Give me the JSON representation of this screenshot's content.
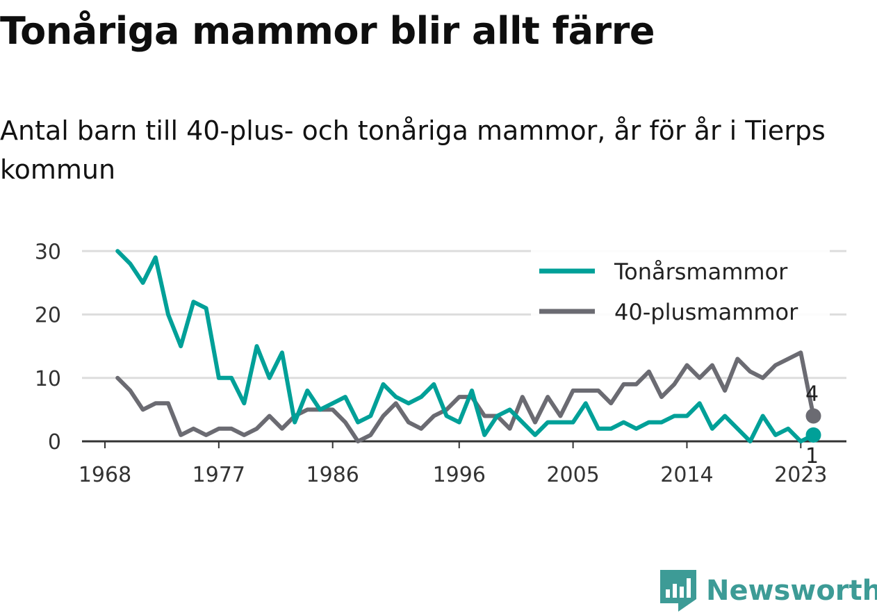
{
  "title": "Tonåriga mammor blir allt färre",
  "subtitle": "Antal barn till 40-plus- och tonåriga mammor, år för år i Tierps kommun",
  "brand": {
    "name": "Newsworthy",
    "icon": "newsworthy-logo-icon",
    "color": "#3d9b96"
  },
  "chart_data": {
    "type": "line",
    "title": "Tonåriga mammor blir allt färre",
    "subtitle": "Antal barn till 40-plus- och tonåriga mammor, år för år i Tierps kommun",
    "xlabel": "",
    "ylabel": "",
    "x": [
      1969,
      1970,
      1971,
      1972,
      1973,
      1974,
      1975,
      1976,
      1977,
      1978,
      1979,
      1980,
      1981,
      1982,
      1983,
      1984,
      1985,
      1986,
      1987,
      1988,
      1989,
      1990,
      1991,
      1992,
      1993,
      1994,
      1995,
      1996,
      1997,
      1998,
      1999,
      2000,
      2001,
      2002,
      2003,
      2004,
      2005,
      2006,
      2007,
      2008,
      2009,
      2010,
      2011,
      2012,
      2013,
      2014,
      2015,
      2016,
      2017,
      2018,
      2019,
      2020,
      2021,
      2022,
      2023,
      2024
    ],
    "xticks": [
      1968,
      1977,
      1986,
      1996,
      2005,
      2014,
      2023
    ],
    "xlim": [
      1968,
      2026
    ],
    "ylim": [
      0,
      32
    ],
    "yticks": [
      0,
      10,
      20,
      30
    ],
    "grid": true,
    "legend": "top-right",
    "series": [
      {
        "name": "Tonårsmammor",
        "color": "#00a098",
        "values": [
          30,
          28,
          25,
          29,
          20,
          15,
          22,
          21,
          10,
          10,
          6,
          15,
          10,
          14,
          3,
          8,
          5,
          6,
          7,
          3,
          4,
          9,
          7,
          6,
          7,
          9,
          4,
          3,
          8,
          1,
          4,
          5,
          3,
          1,
          3,
          3,
          3,
          6,
          2,
          2,
          3,
          2,
          3,
          3,
          4,
          4,
          6,
          2,
          4,
          2,
          0,
          4,
          1,
          2,
          0,
          1
        ],
        "end_label": "1"
      },
      {
        "name": "40-plusmammor",
        "color": "#6b6b72",
        "values": [
          10,
          8,
          5,
          6,
          6,
          1,
          2,
          1,
          2,
          2,
          1,
          2,
          4,
          2,
          4,
          5,
          5,
          5,
          3,
          0,
          1,
          4,
          6,
          3,
          2,
          4,
          5,
          7,
          7,
          4,
          4,
          2,
          7,
          3,
          7,
          4,
          8,
          8,
          8,
          6,
          9,
          9,
          11,
          7,
          9,
          12,
          10,
          12,
          8,
          13,
          11,
          10,
          12,
          13,
          14,
          4
        ],
        "end_label": "4"
      }
    ]
  }
}
